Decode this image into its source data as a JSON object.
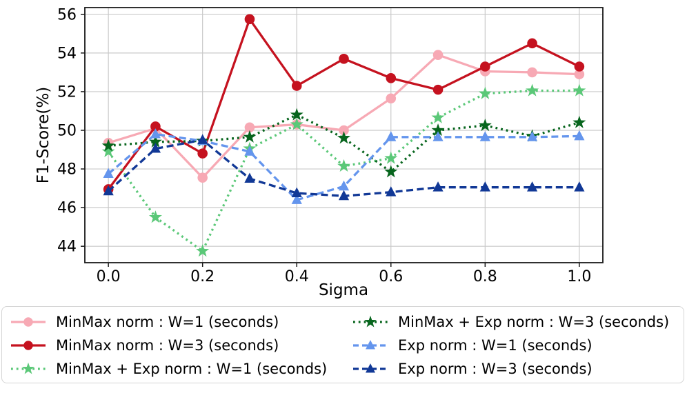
{
  "chart_data": {
    "type": "line",
    "title": "",
    "xlabel": "Sigma",
    "ylabel": "F1-Score(%)",
    "grid": true,
    "legend_position": "bottom",
    "legend_columns": 2,
    "xlim": [
      -0.05,
      1.05
    ],
    "ylim": [
      43.15,
      56.35
    ],
    "xticks": {
      "positions": [
        0.0,
        0.2,
        0.4,
        0.6,
        0.8,
        1.0
      ],
      "labels": [
        "0.0",
        "0.2",
        "0.4",
        "0.6",
        "0.8",
        "1.0"
      ]
    },
    "yticks": {
      "positions": [
        44,
        46,
        48,
        50,
        52,
        54,
        56
      ],
      "labels": [
        "44",
        "46",
        "48",
        "50",
        "52",
        "54",
        "56"
      ]
    },
    "x": [
      0.0,
      0.1,
      0.2,
      0.3,
      0.4,
      0.5,
      0.6,
      0.7,
      0.8,
      0.9,
      1.0
    ],
    "series": [
      {
        "name": "MinMax norm : W=1 (seconds)",
        "color": "#F7A9B4",
        "linestyle": "solid",
        "marker": "circle",
        "values": [
          49.35,
          50.1,
          47.55,
          50.15,
          50.3,
          50.0,
          51.65,
          53.9,
          53.05,
          53.0,
          52.9
        ]
      },
      {
        "name": "MinMax norm : W=3 (seconds)",
        "color": "#C5121F",
        "linestyle": "solid",
        "marker": "circle",
        "values": [
          46.95,
          50.2,
          48.8,
          55.75,
          52.3,
          53.7,
          52.7,
          52.1,
          53.3,
          54.5,
          53.3
        ]
      },
      {
        "name": "MinMax + Exp norm : W=1 (seconds)",
        "color": "#5BC878",
        "linestyle": "dotted",
        "marker": "star",
        "values": [
          48.9,
          45.5,
          43.75,
          49.05,
          50.3,
          48.15,
          48.55,
          50.65,
          51.9,
          52.05,
          52.05
        ]
      },
      {
        "name": "MinMax + Exp norm : W=3 (seconds)",
        "color": "#07651D",
        "linestyle": "dotted",
        "marker": "star",
        "values": [
          49.2,
          49.4,
          49.45,
          49.65,
          50.8,
          49.6,
          47.85,
          50.0,
          50.25,
          49.7,
          50.4
        ]
      },
      {
        "name": "Exp norm : W=1 (seconds)",
        "color": "#6495ED",
        "linestyle": "dashed",
        "marker": "triangle",
        "values": [
          47.75,
          49.8,
          49.45,
          48.9,
          46.4,
          47.1,
          49.65,
          49.65,
          49.65,
          49.65,
          49.7
        ]
      },
      {
        "name": "Exp norm : W=3 (seconds)",
        "color": "#113896",
        "linestyle": "dashed",
        "marker": "triangle",
        "values": [
          46.85,
          49.05,
          49.5,
          47.5,
          46.75,
          46.6,
          46.8,
          47.05,
          47.05,
          47.05,
          47.05
        ]
      }
    ],
    "style": {
      "grid_color": "#c9c9c9",
      "spine_color": "#1a1a1a",
      "background": "#ffffff",
      "legend_border": "#d4d4d4"
    }
  }
}
